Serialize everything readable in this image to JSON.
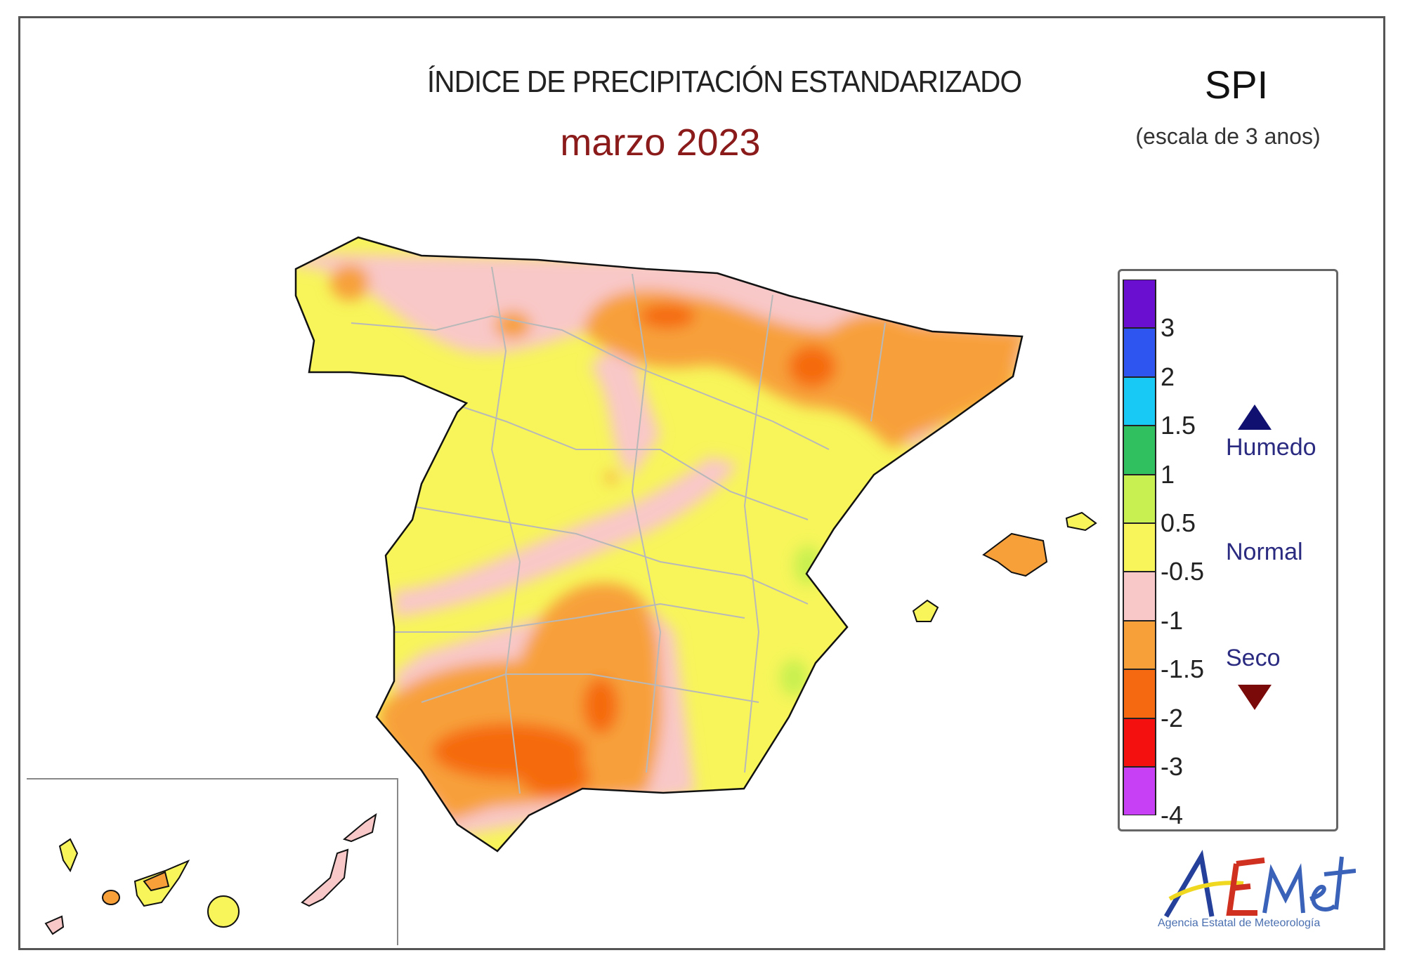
{
  "header": {
    "title": "ÍNDICE DE PRECIPITACIÓN ESTANDARIZADO",
    "period": "marzo 2023",
    "index_abbr": "SPI",
    "scale_note": "(escala de 3 anos)"
  },
  "legend": {
    "segments": [
      {
        "color": "#6a0fd0",
        "label": "3"
      },
      {
        "color": "#2f55f0",
        "label": "2"
      },
      {
        "color": "#18c8f5",
        "label": "1.5"
      },
      {
        "color": "#30c060",
        "label": "1"
      },
      {
        "color": "#c8f050",
        "label": "0.5"
      },
      {
        "color": "#f7f55a",
        "label": "-0.5"
      },
      {
        "color": "#f8c8c8",
        "label": "-1"
      },
      {
        "color": "#f7a03a",
        "label": "-1.5"
      },
      {
        "color": "#f56a10",
        "label": "-2"
      },
      {
        "color": "#f51010",
        "label": "-3"
      },
      {
        "color": "#c840f5",
        "label": "-4"
      }
    ],
    "categories": {
      "wet": "Humedo",
      "normal": "Normal",
      "dry": "Seco"
    },
    "wet_arrow_color": "#101070",
    "dry_arrow_color": "#7a0a0a"
  },
  "logo": {
    "text": "AEMet",
    "agency": "Agencia Estatal de Meteorología"
  }
}
